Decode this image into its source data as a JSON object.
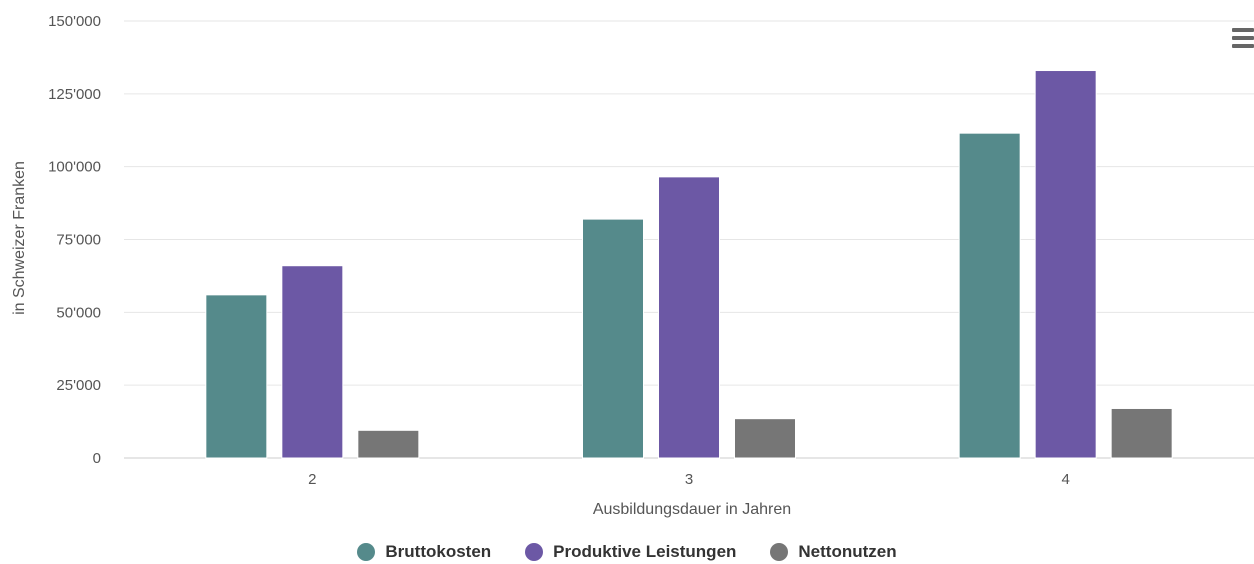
{
  "chart_data": {
    "type": "bar",
    "categories": [
      "2",
      "3",
      "4"
    ],
    "series": [
      {
        "name": "Bruttokosten",
        "color": "#558a8b",
        "values": [
          56000,
          82000,
          111500
        ]
      },
      {
        "name": "Produktive Leistungen",
        "color": "#6c58a5",
        "values": [
          66000,
          96500,
          133000
        ]
      },
      {
        "name": "Nettonutzen",
        "color": "#767676",
        "values": [
          9500,
          13500,
          17000
        ]
      }
    ],
    "ylim": [
      0,
      150000
    ],
    "yticks": [
      0,
      25000,
      50000,
      75000,
      100000,
      125000,
      150000
    ],
    "ytick_labels": [
      "0",
      "25'000",
      "50'000",
      "75'000",
      "100'000",
      "125'000",
      "150'000"
    ],
    "xlabel": "Ausbildungsdauer in Jahren",
    "ylabel": "in Schweizer Franken",
    "grid": true,
    "legend_position": "bottom-center"
  },
  "menu": {
    "icon": "hamburger-menu-icon"
  }
}
